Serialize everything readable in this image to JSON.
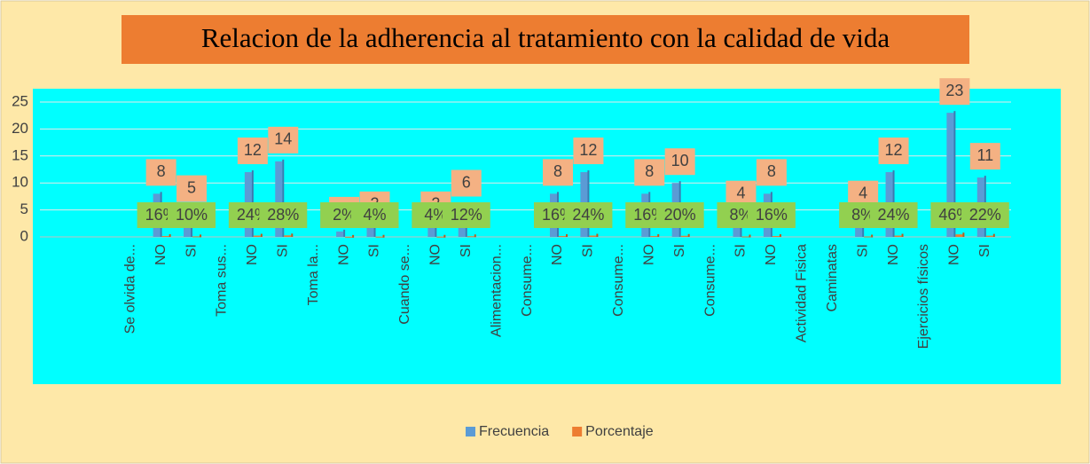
{
  "chart_data": {
    "type": "bar",
    "title": "Relacion  de la adherencia al tratamiento con la calidad de vida",
    "categories": [
      "Se olvida de...",
      "NO",
      "SI",
      "Toma sus...",
      "NO",
      "SI",
      "Toma la...",
      "NO",
      "SI",
      "Cuando se...",
      "NO",
      "SI",
      "Alimentacion...",
      "Consume...",
      "NO",
      "SI",
      "Consume...",
      "NO",
      "SI",
      "Consume...",
      "SI",
      "NO",
      "Actividad Fisica",
      "Caminatas",
      "SI",
      "NO",
      "Ejercicios físicos",
      "NO",
      "SI"
    ],
    "series": [
      {
        "name": "Frecuencia",
        "color": "#5b9bd5",
        "values": [
          null,
          8,
          5,
          null,
          12,
          14,
          null,
          1,
          2,
          null,
          2,
          6,
          null,
          null,
          8,
          12,
          null,
          8,
          10,
          null,
          4,
          8,
          null,
          null,
          4,
          12,
          null,
          23,
          11
        ]
      },
      {
        "name": "Porcentaje",
        "color": "#ed7d31",
        "values": [
          null,
          0.16,
          0.1,
          null,
          0.24,
          0.28,
          null,
          0.02,
          0.04,
          null,
          0.04,
          0.12,
          null,
          null,
          0.16,
          0.24,
          null,
          0.16,
          0.2,
          null,
          0.08,
          0.16,
          null,
          null,
          0.08,
          0.24,
          null,
          0.46,
          0.22
        ],
        "value_labels": [
          null,
          "16%",
          "10%",
          null,
          "24%",
          "28%",
          null,
          "2%",
          "4%",
          null,
          "4%",
          "12%",
          null,
          null,
          "16%",
          "24%",
          null,
          "16%",
          "20%",
          null,
          "8%",
          "16%",
          null,
          null,
          "8%",
          "24%",
          null,
          "46%",
          "22%"
        ]
      }
    ],
    "ylim": [
      0,
      25
    ],
    "yticks": [
      0,
      5,
      10,
      15,
      20,
      25
    ],
    "grid": true,
    "legend": "bottom"
  }
}
